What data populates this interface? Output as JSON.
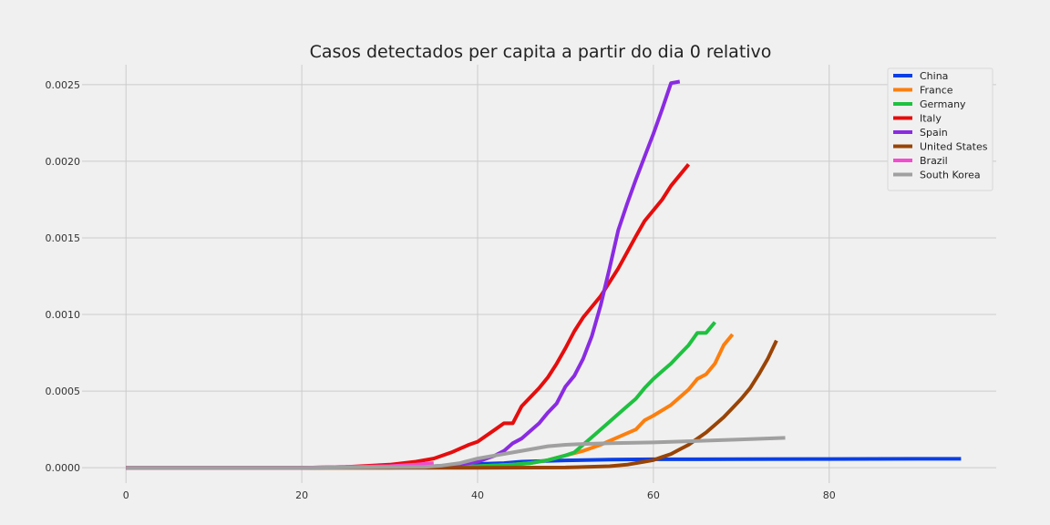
{
  "chart_data": {
    "type": "line",
    "title": "Casos detectados per capita a partir do dia 0 relativo",
    "xlabel": "",
    "ylabel": "",
    "xlim": [
      -5,
      99
    ],
    "ylim": [
      -0.0001,
      0.00263
    ],
    "x_ticks": [
      0,
      20,
      40,
      60,
      80
    ],
    "x_tick_labels": [
      "0",
      "20",
      "40",
      "60",
      "80"
    ],
    "y_ticks": [
      0.0,
      0.0005,
      0.001,
      0.0015,
      0.002,
      0.0025
    ],
    "y_tick_labels": [
      "0.0000",
      "0.0005",
      "0.0010",
      "0.0015",
      "0.0020",
      "0.0025"
    ],
    "grid": true,
    "legend_position": "top-right",
    "series": [
      {
        "name": "China",
        "color": "#0a3fe6",
        "x": [
          0,
          20,
          35,
          40,
          43,
          45,
          50,
          55,
          60,
          70,
          80,
          90,
          95
        ],
        "y": [
          0,
          0,
          5e-06,
          2.5e-05,
          3e-05,
          4e-05,
          4.8e-05,
          5.3e-05,
          5.5e-05,
          5.6e-05,
          5.7e-05,
          5.8e-05,
          5.8e-05
        ]
      },
      {
        "name": "France",
        "color": "#fc7f0e",
        "x": [
          0,
          20,
          30,
          35,
          40,
          44,
          46,
          48,
          50,
          52,
          54,
          56,
          58,
          59,
          60,
          62,
          64,
          65,
          66,
          67,
          68,
          69
        ],
        "y": [
          0,
          0,
          0,
          5e-06,
          1e-05,
          2e-05,
          3e-05,
          5e-05,
          8e-05,
          0.00011,
          0.00015,
          0.0002,
          0.00025,
          0.00031,
          0.00034,
          0.00041,
          0.00051,
          0.00058,
          0.00061,
          0.00068,
          0.0008,
          0.00087
        ]
      },
      {
        "name": "Germany",
        "color": "#1ec13f",
        "x": [
          0,
          20,
          35,
          40,
          44,
          46,
          48,
          50,
          51,
          52,
          53,
          54,
          55,
          56,
          57,
          58,
          59,
          60,
          61,
          62,
          63,
          64,
          65,
          66,
          67
        ],
        "y": [
          0,
          0,
          5e-06,
          1e-05,
          2e-05,
          3e-05,
          5e-05,
          8e-05,
          0.0001,
          0.00015,
          0.0002,
          0.00025,
          0.0003,
          0.00035,
          0.0004,
          0.00045,
          0.00052,
          0.00058,
          0.00063,
          0.00068,
          0.00074,
          0.0008,
          0.00088,
          0.00088,
          0.00095
        ]
      },
      {
        "name": "Italy",
        "color": "#e50d0d",
        "x": [
          0,
          20,
          25,
          30,
          33,
          35,
          37,
          39,
          40,
          42,
          43,
          44,
          45,
          47,
          48,
          49,
          50,
          51,
          52,
          54,
          56,
          58,
          59,
          61,
          62,
          64
        ],
        "y": [
          0,
          0,
          5e-06,
          2e-05,
          4e-05,
          6e-05,
          0.0001,
          0.00015,
          0.00017,
          0.00025,
          0.00029,
          0.00029,
          0.0004,
          0.00052,
          0.00059,
          0.00068,
          0.00078,
          0.00089,
          0.00098,
          0.00112,
          0.0013,
          0.00151,
          0.00161,
          0.00175,
          0.00184,
          0.00198
        ]
      },
      {
        "name": "Spain",
        "color": "#8a2be2",
        "x": [
          0,
          20,
          30,
          35,
          38,
          40,
          42,
          43,
          44,
          45,
          46,
          47,
          48,
          49,
          50,
          51,
          52,
          53,
          54,
          55,
          56,
          57,
          58,
          59,
          60,
          61,
          62,
          63
        ],
        "y": [
          0,
          0,
          5e-06,
          1e-05,
          2e-05,
          4e-05,
          8e-05,
          0.00011,
          0.00016,
          0.00019,
          0.00024,
          0.00029,
          0.00036,
          0.00042,
          0.00053,
          0.0006,
          0.00071,
          0.00086,
          0.00106,
          0.0013,
          0.00155,
          0.00172,
          0.00188,
          0.00203,
          0.00218,
          0.00234,
          0.00251,
          0.00252
        ]
      },
      {
        "name": "United States",
        "color": "#994405",
        "x": [
          0,
          20,
          40,
          50,
          55,
          57,
          58,
          59,
          60,
          61,
          62,
          63,
          64,
          65,
          66,
          67,
          68,
          69,
          70,
          71,
          72,
          73,
          74
        ],
        "y": [
          0,
          0,
          0,
          2e-06,
          1e-05,
          2e-05,
          3e-05,
          4e-05,
          5e-05,
          7e-05,
          9e-05,
          0.00012,
          0.00015,
          0.00019,
          0.00023,
          0.00028,
          0.00033,
          0.00039,
          0.00045,
          0.00052,
          0.00061,
          0.00071,
          0.00083
        ]
      },
      {
        "name": "Brazil",
        "color": "#f24ccf",
        "x": [
          0,
          20,
          25,
          30,
          33,
          35
        ],
        "y": [
          0,
          0,
          5e-06,
          1e-05,
          2e-05,
          3e-05
        ]
      },
      {
        "name": "South Korea",
        "color": "#a0a0a0",
        "x": [
          0,
          20,
          34,
          36,
          38,
          40,
          42,
          44,
          46,
          48,
          50,
          52,
          55,
          60,
          65,
          70,
          75
        ],
        "y": [
          0,
          0,
          5e-06,
          1.5e-05,
          3e-05,
          6e-05,
          8e-05,
          0.0001,
          0.00012,
          0.00014,
          0.00015,
          0.000155,
          0.00016,
          0.000165,
          0.000175,
          0.000185,
          0.000195
        ]
      }
    ]
  }
}
